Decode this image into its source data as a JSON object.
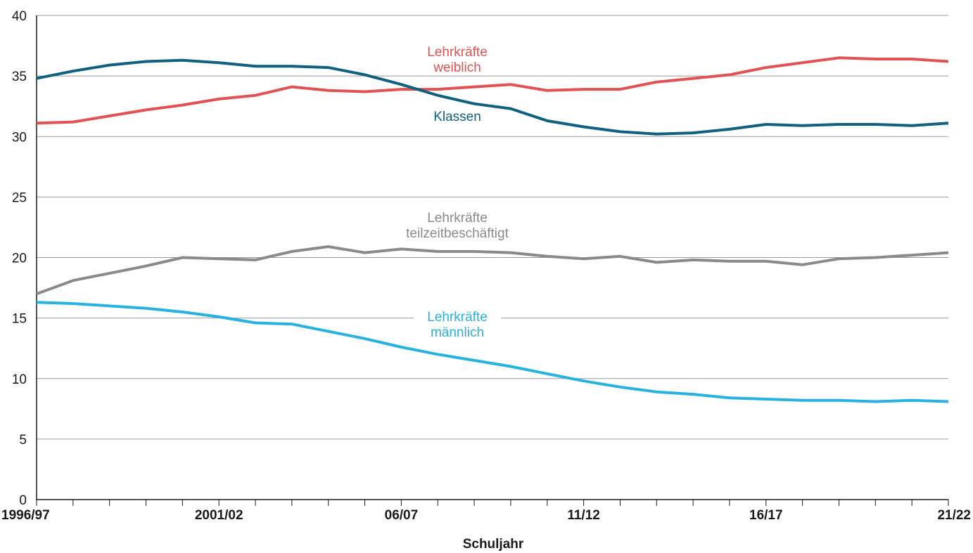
{
  "chart_data": {
    "type": "line",
    "title": "",
    "xlabel": "Schuljahr",
    "ylabel": "",
    "ylim": [
      0,
      40
    ],
    "yticks": [
      "0",
      "5",
      "10",
      "15",
      "20",
      "25",
      "30",
      "35",
      "40"
    ],
    "x": [
      "1996/97",
      "1997/98",
      "1998/99",
      "1999/00",
      "2000/01",
      "2001/02",
      "2002/03",
      "2003/04",
      "2004/05",
      "2005/06",
      "06/07",
      "2007/08",
      "2008/09",
      "2009/10",
      "2010/11",
      "11/12",
      "2012/13",
      "2013/14",
      "2014/15",
      "2015/16",
      "16/17",
      "2017/18",
      "2018/19",
      "2019/20",
      "2020/21",
      "21/22"
    ],
    "xtick_labels": [
      "1996/97",
      "2001/02",
      "06/07",
      "11/12",
      "16/17",
      "21/22"
    ],
    "grid": true,
    "legend": "inline",
    "series": [
      {
        "name": "Lehrkräfte weiblich",
        "color": "#e15252",
        "values": [
          31.1,
          31.2,
          31.7,
          32.2,
          32.6,
          33.1,
          33.4,
          34.1,
          33.8,
          33.7,
          33.9,
          33.9,
          34.1,
          34.3,
          33.8,
          33.9,
          33.9,
          34.5,
          34.8,
          35.1,
          35.7,
          36.1,
          36.5,
          36.4,
          36.4,
          36.2
        ]
      },
      {
        "name": "Klassen",
        "color": "#10617f",
        "values": [
          34.8,
          35.4,
          35.9,
          36.2,
          36.3,
          36.1,
          35.8,
          35.8,
          35.7,
          35.1,
          34.3,
          33.4,
          32.7,
          32.3,
          31.3,
          30.8,
          30.4,
          30.2,
          30.3,
          30.6,
          31.0,
          30.9,
          31.0,
          31.0,
          30.9,
          31.1
        ]
      },
      {
        "name": "Lehrkräfte teilzeitbeschäftigt",
        "color": "#8a8a8a",
        "values": [
          17.0,
          18.1,
          18.7,
          19.3,
          20.0,
          19.9,
          19.8,
          20.5,
          20.9,
          20.4,
          20.7,
          20.5,
          20.5,
          20.4,
          20.1,
          19.9,
          20.1,
          19.6,
          19.8,
          19.7,
          19.7,
          19.4,
          19.9,
          20.0,
          20.2,
          20.4
        ]
      },
      {
        "name": "Lehrkräfte männlich",
        "color": "#27b2e0",
        "values": [
          16.3,
          16.2,
          16.0,
          15.8,
          15.5,
          15.1,
          14.6,
          14.5,
          13.9,
          13.3,
          12.6,
          12.0,
          11.5,
          11.0,
          10.4,
          9.8,
          9.3,
          8.9,
          8.7,
          8.4,
          8.3,
          8.2,
          8.2,
          8.1,
          8.2,
          8.1
        ]
      }
    ],
    "annotations": [
      {
        "series": "Lehrkräfte weiblich",
        "lines": [
          "Lehrkräfte",
          "weiblich"
        ]
      },
      {
        "series": "Klassen",
        "lines": [
          "Klassen"
        ]
      },
      {
        "series": "Lehrkräfte teilzeitbeschäftigt",
        "lines": [
          "Lehrkräfte",
          "teilzeitbeschäftigt"
        ]
      },
      {
        "series": "Lehrkräfte männlich",
        "lines": [
          "Lehrkräfte",
          "männlich"
        ]
      }
    ]
  }
}
